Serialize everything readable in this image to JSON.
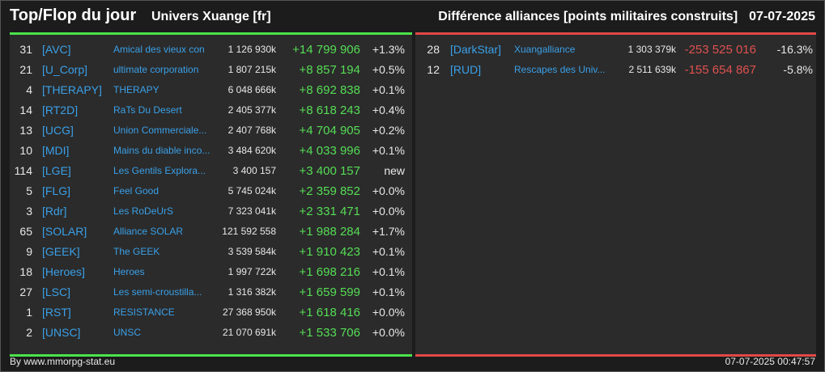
{
  "header": {
    "title": "Top/Flop du jour",
    "universe": "Univers Xuange [fr]",
    "right_title": "Différence alliances [points militaires construits]",
    "date": "07-07-2025"
  },
  "top": [
    {
      "rank": "31",
      "tag": "[AVC]",
      "name": "Amical des vieux con",
      "points": "1 126 930k",
      "diff": "+14 799 906",
      "pct": "+1.3%"
    },
    {
      "rank": "21",
      "tag": "[U_Corp]",
      "name": "ultimate corporation",
      "points": "1 807 215k",
      "diff": "+8 857 194",
      "pct": "+0.5%"
    },
    {
      "rank": "4",
      "tag": "[THERAPY]",
      "name": "THERAPY",
      "points": "6 048 666k",
      "diff": "+8 692 838",
      "pct": "+0.1%"
    },
    {
      "rank": "14",
      "tag": "[RT2D]",
      "name": "RaTs Du Desert",
      "points": "2 405 377k",
      "diff": "+8 618 243",
      "pct": "+0.4%"
    },
    {
      "rank": "13",
      "tag": "[UCG]",
      "name": "Union Commerciale...",
      "points": "2 407 768k",
      "diff": "+4 704 905",
      "pct": "+0.2%"
    },
    {
      "rank": "10",
      "tag": "[MDI]",
      "name": "Mains du diable inco...",
      "points": "3 484 620k",
      "diff": "+4 033 996",
      "pct": "+0.1%"
    },
    {
      "rank": "114",
      "tag": "[LGE]",
      "name": "Les Gentils Explora...",
      "points": "3 400 157",
      "diff": "+3 400 157",
      "pct": "new"
    },
    {
      "rank": "5",
      "tag": "[FLG]",
      "name": "Feel Good",
      "points": "5 745 024k",
      "diff": "+2 359 852",
      "pct": "+0.0%"
    },
    {
      "rank": "3",
      "tag": "[Rdr]",
      "name": "Les RoDeUrS",
      "points": "7 323 041k",
      "diff": "+2 331 471",
      "pct": "+0.0%"
    },
    {
      "rank": "65",
      "tag": "[SOLAR]",
      "name": "Alliance SOLAR",
      "points": "121 592 558",
      "diff": "+1 988 284",
      "pct": "+1.7%"
    },
    {
      "rank": "9",
      "tag": "[GEEK]",
      "name": "The GEEK",
      "points": "3 539 584k",
      "diff": "+1 910 423",
      "pct": "+0.1%"
    },
    {
      "rank": "18",
      "tag": "[Heroes]",
      "name": "Heroes",
      "points": "1 997 722k",
      "diff": "+1 698 216",
      "pct": "+0.1%"
    },
    {
      "rank": "27",
      "tag": "[LSC]",
      "name": "Les semi-croustilla...",
      "points": "1 316 382k",
      "diff": "+1 659 599",
      "pct": "+0.1%"
    },
    {
      "rank": "1",
      "tag": "[RST]",
      "name": "RESISTANCE",
      "points": "27 368 950k",
      "diff": "+1 618 416",
      "pct": "+0.0%"
    },
    {
      "rank": "2",
      "tag": "[UNSC]",
      "name": "UNSC",
      "points": "21 070 691k",
      "diff": "+1 533 706",
      "pct": "+0.0%"
    }
  ],
  "flop": [
    {
      "rank": "28",
      "tag": "[DarkStar]",
      "name": "Xuangalliance",
      "points": "1 303 379k",
      "diff": "-253 525 016",
      "pct": "-16.3%"
    },
    {
      "rank": "12",
      "tag": "[RUD]",
      "name": "Rescapes des Univ...",
      "points": "2 511 639k",
      "diff": "-155 654 867",
      "pct": "-5.8%"
    }
  ],
  "footer": {
    "source": "By www.mmorpg-stat.eu",
    "timestamp": "07-07-2025 00:47:57"
  },
  "colors": {
    "top_accent": "#4be34b",
    "flop_accent": "#e04848",
    "link": "#3aa0e8",
    "positive": "#55dd55",
    "negative": "#e05050"
  }
}
